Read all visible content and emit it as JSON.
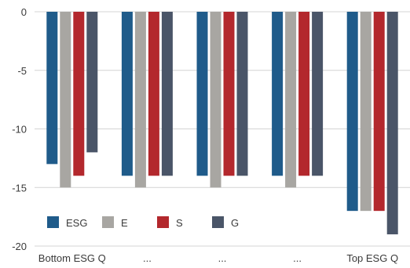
{
  "chart_data": {
    "type": "bar",
    "title": "",
    "xlabel": "",
    "ylabel": "",
    "categories": [
      "Bottom ESG Q",
      "...",
      "...",
      "...",
      "Top ESG Q"
    ],
    "ylim": [
      -20,
      0
    ],
    "yticks": [
      0,
      -5,
      -10,
      -15,
      -20
    ],
    "grid": "horizontal",
    "legend_position": "bottom-left",
    "series": [
      {
        "name": "ESG",
        "color": "#1f5b8a",
        "values": [
          -13,
          -14,
          -14,
          -14,
          -17
        ]
      },
      {
        "name": "E",
        "color": "#a8a6a2",
        "values": [
          -15,
          -15,
          -15,
          -15,
          -17
        ]
      },
      {
        "name": "S",
        "color": "#b3282d",
        "values": [
          -14,
          -14,
          -14,
          -14,
          -17
        ]
      },
      {
        "name": "G",
        "color": "#4a5568",
        "values": [
          -12,
          -14,
          -14,
          -14,
          -19
        ]
      }
    ]
  }
}
